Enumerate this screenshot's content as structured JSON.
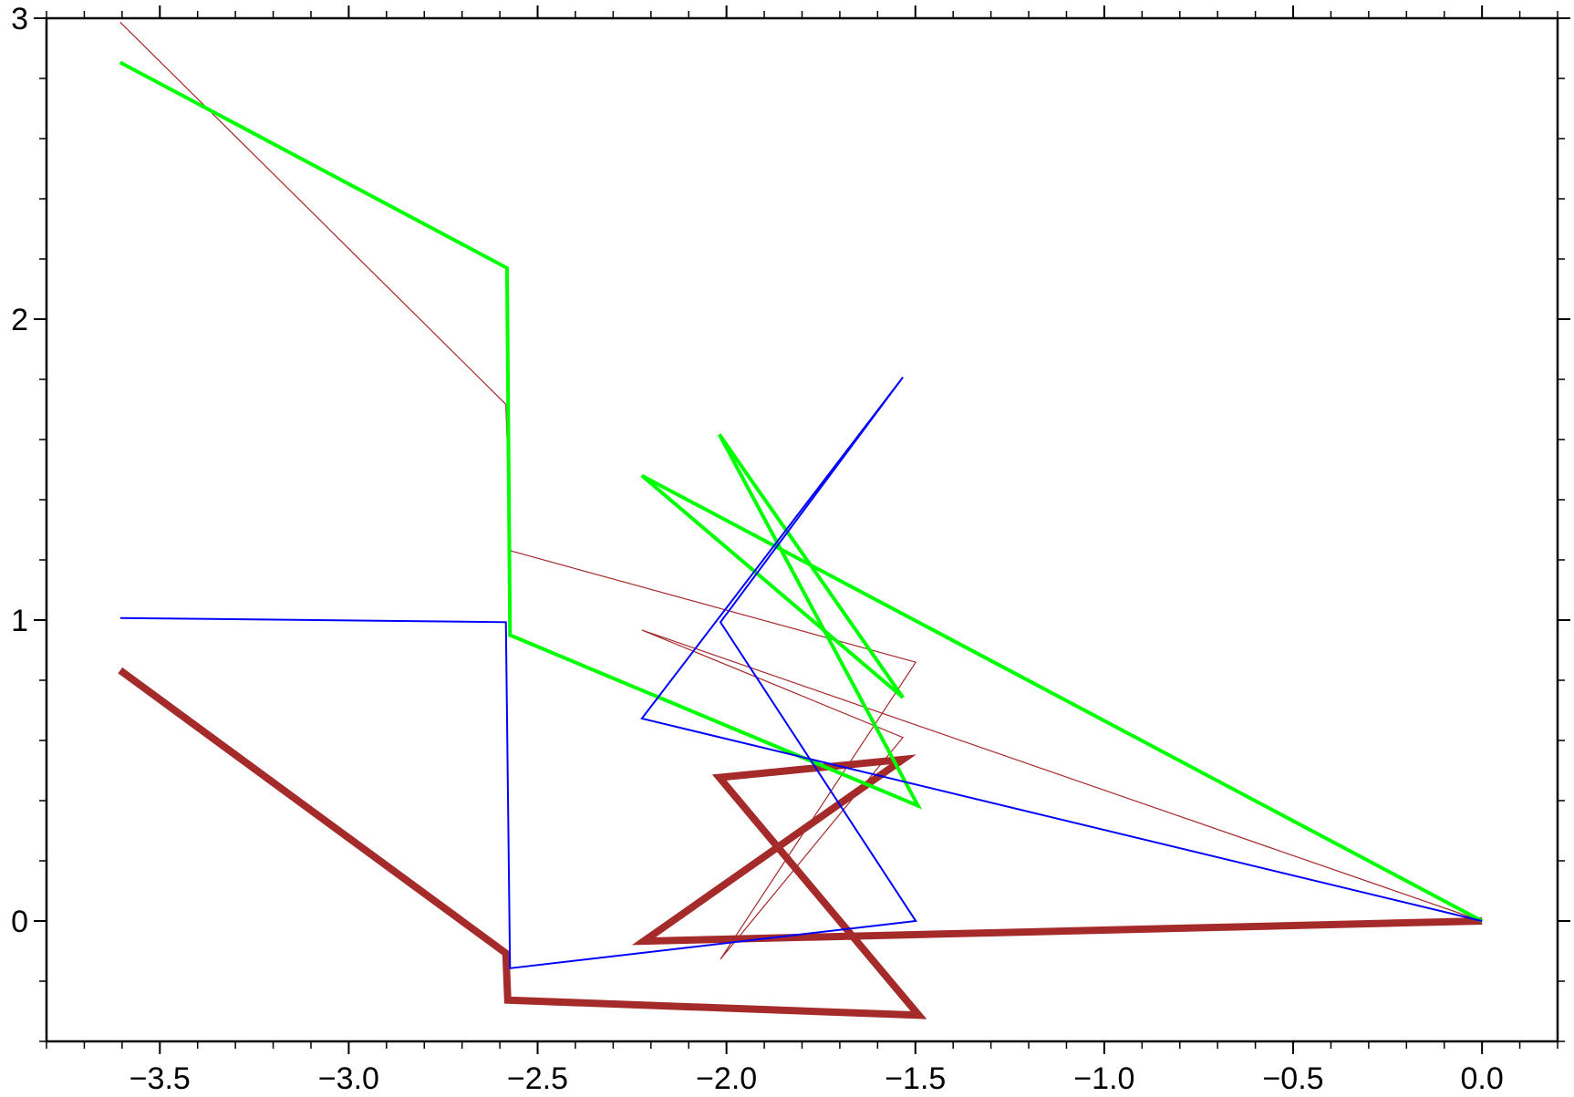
{
  "chart_data": {
    "type": "line",
    "xlim": [
      -3.8,
      0.2
    ],
    "ylim": [
      -0.4,
      3
    ],
    "xticks": [
      {
        "value": -3.5,
        "label": "−3.5"
      },
      {
        "value": -3.0,
        "label": "−3.0"
      },
      {
        "value": -2.5,
        "label": "−2.5"
      },
      {
        "value": -2.0,
        "label": "−2.0"
      },
      {
        "value": -1.5,
        "label": "−1.5"
      },
      {
        "value": -1.0,
        "label": "−1.0"
      },
      {
        "value": -0.5,
        "label": "−0.5"
      },
      {
        "value": 0,
        "label": "0.0"
      }
    ],
    "yticks": [
      0,
      1,
      2,
      3
    ],
    "x_minor_step": 0.1,
    "y_minor_step": 0.2,
    "series": [
      {
        "color": "#a52a2a",
        "line_width": 8,
        "x": [
          -3.605,
          -2.584,
          -2.579,
          -1.491,
          -2.019,
          -1.533,
          -2.219,
          0
        ],
        "values": [
          0.833,
          -0.107,
          -0.263,
          -0.313,
          0.477,
          0.537,
          -0.067,
          0
        ]
      },
      {
        "color": "#a52a2a",
        "line_width": 1.2,
        "x": [
          -3.605,
          -2.584,
          -2.571,
          -1.499,
          -2.016,
          -1.533,
          -2.224,
          0
        ],
        "values": [
          2.987,
          1.717,
          1.23,
          0.86,
          -0.127,
          0.61,
          0.967,
          0
        ]
      },
      {
        "color": "#00ff00",
        "line_width": 4,
        "x": [
          -3.605,
          -2.581,
          -2.573,
          -1.493,
          -2.019,
          -1.533,
          -2.224,
          0
        ],
        "values": [
          2.853,
          2.17,
          0.95,
          0.383,
          1.617,
          0.743,
          1.48,
          0
        ]
      },
      {
        "color": "#0000ff",
        "line_width": 2,
        "x": [
          -3.605,
          -2.584,
          -2.573,
          -1.499,
          -2.016,
          -1.533,
          -2.224,
          0
        ],
        "values": [
          1.007,
          0.993,
          -0.157,
          0,
          0.993,
          1.807,
          0.673,
          0
        ]
      }
    ]
  }
}
